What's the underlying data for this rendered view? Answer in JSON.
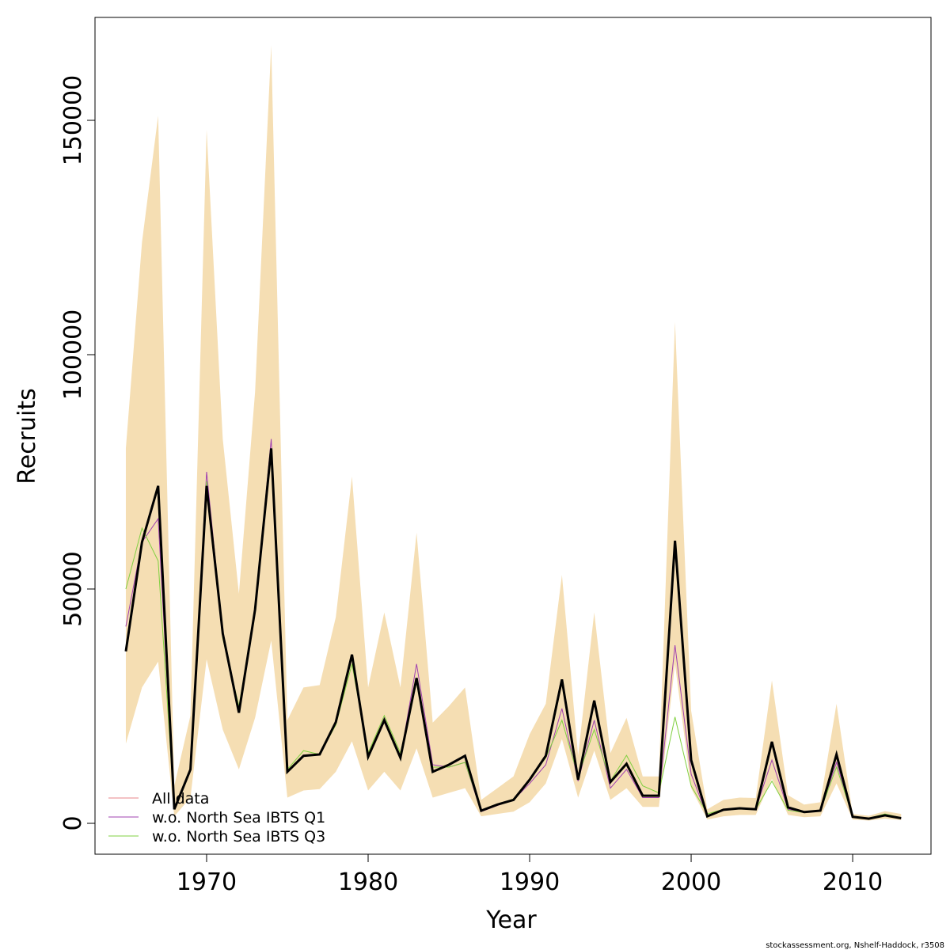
{
  "chart_data": {
    "type": "line",
    "xlabel": "Year",
    "ylabel": "Recruits",
    "footer": "stockassessment.org, Nshelf-Haddock, r3508",
    "x": [
      1965,
      1966,
      1967,
      1968,
      1969,
      1970,
      1971,
      1972,
      1973,
      1974,
      1975,
      1976,
      1977,
      1978,
      1979,
      1980,
      1981,
      1982,
      1983,
      1984,
      1985,
      1986,
      1987,
      1988,
      1989,
      1990,
      1991,
      1992,
      1993,
      1994,
      1995,
      1996,
      1997,
      1998,
      1999,
      2000,
      2001,
      2002,
      2003,
      2004,
      2005,
      2006,
      2007,
      2008,
      2009,
      2010,
      2011,
      2012,
      2013
    ],
    "band": {
      "color": "#f5deb3",
      "upper": [
        80000,
        124000,
        151000,
        8000,
        23000,
        148000,
        82000,
        49000,
        92000,
        166000,
        22000,
        29000,
        29500,
        44000,
        74000,
        29000,
        45000,
        29000,
        62000,
        21500,
        25000,
        29000,
        5000,
        7500,
        10000,
        19000,
        25500,
        53000,
        14500,
        45000,
        15000,
        22500,
        10000,
        10000,
        107000,
        24000,
        3000,
        5000,
        5500,
        5400,
        30500,
        6000,
        4000,
        4500,
        25500,
        2000,
        1600,
        2600,
        2000
      ],
      "lower": [
        17000,
        29000,
        34500,
        1500,
        5500,
        35000,
        20000,
        11500,
        22500,
        39000,
        5500,
        7000,
        7300,
        11000,
        17500,
        7000,
        11000,
        7000,
        16000,
        5500,
        6500,
        7500,
        1500,
        2000,
        2500,
        4500,
        8500,
        18000,
        5500,
        15500,
        5000,
        7500,
        3500,
        3500,
        34000,
        7500,
        800,
        1500,
        1800,
        1800,
        9500,
        1800,
        1300,
        1500,
        8500,
        800,
        600,
        1000,
        700
      ]
    },
    "series": [
      {
        "name": "All data",
        "color": "#e8868a",
        "values": [
          36700,
          60000,
          72000,
          3000,
          11500,
          72000,
          40500,
          23600,
          45600,
          80000,
          11000,
          14400,
          14700,
          21600,
          36000,
          14200,
          22000,
          14000,
          31000,
          11000,
          12500,
          14400,
          2700,
          4000,
          5000,
          9300,
          14400,
          30700,
          9300,
          26200,
          8800,
          12700,
          5900,
          5900,
          60300,
          13500,
          1500,
          2900,
          3200,
          3000,
          17400,
          3400,
          2400,
          2700,
          14700,
          1400,
          1000,
          1700,
          1100
        ]
      },
      {
        "name": "w.o. North Sea IBTS Q1",
        "color": "#a040b0",
        "values": [
          42000,
          60000,
          65000,
          3000,
          11500,
          75000,
          40500,
          24000,
          46000,
          82000,
          11000,
          14400,
          14700,
          21600,
          35500,
          14200,
          22500,
          14000,
          34000,
          12500,
          12000,
          13000,
          2500,
          3800,
          5000,
          8500,
          12500,
          24500,
          9000,
          22000,
          7500,
          11500,
          5500,
          5500,
          38000,
          10500,
          1500,
          2900,
          3200,
          3000,
          13500,
          3000,
          2300,
          2700,
          13000,
          1300,
          1000,
          1600,
          1000
        ]
      },
      {
        "name": "w.o. North Sea IBTS Q3",
        "color": "#80d040",
        "values": [
          50000,
          63000,
          56000,
          3000,
          11500,
          73000,
          39500,
          25000,
          45000,
          79000,
          11500,
          15500,
          14700,
          21000,
          34000,
          15000,
          23000,
          15000,
          30000,
          12000,
          12000,
          13000,
          2800,
          4000,
          5200,
          9500,
          14000,
          22000,
          10000,
          20000,
          9000,
          14500,
          8000,
          6500,
          22700,
          8000,
          2000,
          3000,
          3200,
          3000,
          9000,
          2800,
          2300,
          2700,
          12000,
          1500,
          1100,
          2000,
          1200
        ]
      }
    ],
    "estimate": {
      "color": "#000000",
      "values": [
        36700,
        60000,
        72000,
        3000,
        11500,
        72000,
        40500,
        23600,
        45600,
        80000,
        11000,
        14400,
        14700,
        21600,
        36000,
        14200,
        22000,
        14000,
        31000,
        11000,
        12500,
        14400,
        2700,
        4000,
        5000,
        9300,
        14400,
        30700,
        9300,
        26200,
        8800,
        12700,
        5900,
        5900,
        60300,
        13500,
        1500,
        2900,
        3200,
        3000,
        17400,
        3400,
        2400,
        2700,
        14700,
        1400,
        1000,
        1700,
        1100
      ]
    },
    "xlim": [
      1963.09,
      2014.85
    ],
    "ylim": [
      -6588,
      171960
    ],
    "xticks": [
      1970,
      1980,
      1990,
      2000,
      2010
    ],
    "yticks": [
      0,
      50000,
      100000,
      150000
    ],
    "legend": "bottom-left"
  }
}
